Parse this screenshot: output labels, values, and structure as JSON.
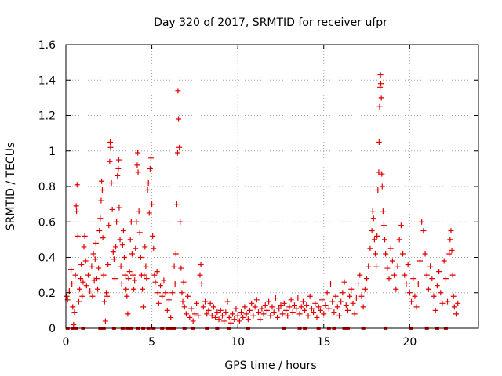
{
  "chart_data": {
    "type": "scatter",
    "title": "Day 320 of 2017, SRMTID for receiver ufpr",
    "xlabel": "GPS time / hours",
    "ylabel": "SRMTID / TECUs",
    "xlim": [
      0,
      24
    ],
    "ylim": [
      0,
      1.6
    ],
    "x_ticks": [
      0,
      5,
      10,
      15,
      20
    ],
    "x_tick_labels": [
      "0",
      "5",
      "10",
      "15",
      "20"
    ],
    "y_ticks": [
      0,
      0.2,
      0.4,
      0.6,
      0.8,
      1.0,
      1.2,
      1.4,
      1.6
    ],
    "y_tick_labels": [
      "0",
      "0.2",
      "0.4",
      "0.6",
      "0.8",
      "1",
      "1.2",
      "1.4",
      "1.6"
    ],
    "grid": true,
    "marker": "+",
    "color": "#e00000",
    "series": [
      {
        "name": "SRMTID",
        "points": [
          [
            0.05,
            0.18
          ],
          [
            0.1,
            0.16
          ],
          [
            0.2,
            0.21
          ],
          [
            0.3,
            0.33
          ],
          [
            0.35,
            0.25
          ],
          [
            0.4,
            0.12
          ],
          [
            0.45,
            0.02
          ],
          [
            0.5,
            0.09
          ],
          [
            0.55,
            0.3
          ],
          [
            0.6,
            0.69
          ],
          [
            0.62,
            0.66
          ],
          [
            0.65,
            0.81
          ],
          [
            0.7,
            0.52
          ],
          [
            0.75,
            0.15
          ],
          [
            0.8,
            0.22
          ],
          [
            0.85,
            0.28
          ],
          [
            0.9,
            0.36
          ],
          [
            0.95,
            0.18
          ],
          [
            1.0,
            0.26
          ],
          [
            1.05,
            0.46
          ],
          [
            1.1,
            0.52
          ],
          [
            1.15,
            0.38
          ],
          [
            1.2,
            0.24
          ],
          [
            1.3,
            0.3
          ],
          [
            1.4,
            0.21
          ],
          [
            1.5,
            0.35
          ],
          [
            1.55,
            0.18
          ],
          [
            1.6,
            0.42
          ],
          [
            1.65,
            0.27
          ],
          [
            1.7,
            0.39
          ],
          [
            1.75,
            0.48
          ],
          [
            1.8,
            0.28
          ],
          [
            1.85,
            0.22
          ],
          [
            1.9,
            0.34
          ],
          [
            1.95,
            0.55
          ],
          [
            2.0,
            0.62
          ],
          [
            2.05,
            0.72
          ],
          [
            2.08,
            0.83
          ],
          [
            2.12,
            0.78
          ],
          [
            2.15,
            0.51
          ],
          [
            2.2,
            0.3
          ],
          [
            2.25,
            0.15
          ],
          [
            2.3,
            0.04
          ],
          [
            2.35,
            0.2
          ],
          [
            2.4,
            0.18
          ],
          [
            2.45,
            0.36
          ],
          [
            2.5,
            0.58
          ],
          [
            2.55,
            0.94
          ],
          [
            2.58,
            1.05
          ],
          [
            2.6,
            1.02
          ],
          [
            2.65,
            0.82
          ],
          [
            2.7,
            0.67
          ],
          [
            2.75,
            0.43
          ],
          [
            2.8,
            0.39
          ],
          [
            2.85,
            0.28
          ],
          [
            2.9,
            0.46
          ],
          [
            2.95,
            0.6
          ],
          [
            3.0,
            0.86
          ],
          [
            3.05,
            0.9
          ],
          [
            3.08,
            0.95
          ],
          [
            3.1,
            0.68
          ],
          [
            3.15,
            0.5
          ],
          [
            3.2,
            0.35
          ],
          [
            3.25,
            0.25
          ],
          [
            3.3,
            0.47
          ],
          [
            3.35,
            0.55
          ],
          [
            3.4,
            0.4
          ],
          [
            3.45,
            0.3
          ],
          [
            3.5,
            0.22
          ],
          [
            3.55,
            0.18
          ],
          [
            3.6,
            0.08
          ],
          [
            3.65,
            0.28
          ],
          [
            3.7,
            0.32
          ],
          [
            3.75,
            0.5
          ],
          [
            3.8,
            0.6
          ],
          [
            3.85,
            0.42
          ],
          [
            3.9,
            0.3
          ],
          [
            3.95,
            0.22
          ],
          [
            4.0,
            0.27
          ],
          [
            4.05,
            0.45
          ],
          [
            4.1,
            0.6
          ],
          [
            4.15,
            0.92
          ],
          [
            4.18,
            0.99
          ],
          [
            4.2,
            0.88
          ],
          [
            4.25,
            0.66
          ],
          [
            4.3,
            0.54
          ],
          [
            4.35,
            0.4
          ],
          [
            4.4,
            0.3
          ],
          [
            4.45,
            0.22
          ],
          [
            4.5,
            0.12
          ],
          [
            4.55,
            0.3
          ],
          [
            4.6,
            0.46
          ],
          [
            4.65,
            0.35
          ],
          [
            4.7,
            0.28
          ],
          [
            4.75,
            0.78
          ],
          [
            4.8,
            0.82
          ],
          [
            4.85,
            0.65
          ],
          [
            4.9,
            0.9
          ],
          [
            4.95,
            0.96
          ],
          [
            5.0,
            0.7
          ],
          [
            5.05,
            0.52
          ],
          [
            5.1,
            0.45
          ],
          [
            5.15,
            0.3
          ],
          [
            5.2,
            0.26
          ],
          [
            5.3,
            0.32
          ],
          [
            5.35,
            0.2
          ],
          [
            5.4,
            0.14
          ],
          [
            5.5,
            0.24
          ],
          [
            5.6,
            0.18
          ],
          [
            5.7,
            0.27
          ],
          [
            5.8,
            0.2
          ],
          [
            5.9,
            0.1
          ],
          [
            6.0,
            0.16
          ],
          [
            6.1,
            0.06
          ],
          [
            6.2,
            0.2
          ],
          [
            6.3,
            0.35
          ],
          [
            6.35,
            0.25
          ],
          [
            6.4,
            0.42
          ],
          [
            6.45,
            0.7
          ],
          [
            6.5,
            0.99
          ],
          [
            6.52,
            1.34
          ],
          [
            6.55,
            1.18
          ],
          [
            6.6,
            1.02
          ],
          [
            6.65,
            0.6
          ],
          [
            6.7,
            0.34
          ],
          [
            6.75,
            0.2
          ],
          [
            6.8,
            0.15
          ],
          [
            6.85,
            0.26
          ],
          [
            6.9,
            0.12
          ],
          [
            7.0,
            0.08
          ],
          [
            7.1,
            0.18
          ],
          [
            7.2,
            0.06
          ],
          [
            7.3,
            0.11
          ],
          [
            7.4,
            0.04
          ],
          [
            7.5,
            0.08
          ],
          [
            7.6,
            0.14
          ],
          [
            7.7,
            0.07
          ],
          [
            7.8,
            0.3
          ],
          [
            7.85,
            0.36
          ],
          [
            7.9,
            0.25
          ],
          [
            8.0,
            0.12
          ],
          [
            8.1,
            0.15
          ],
          [
            8.2,
            0.08
          ],
          [
            8.3,
            0.1
          ],
          [
            8.4,
            0.14
          ],
          [
            8.5,
            0.07
          ],
          [
            8.6,
            0.12
          ],
          [
            8.7,
            0.06
          ],
          [
            8.8,
            0.09
          ],
          [
            8.9,
            0.05
          ],
          [
            9.0,
            0.1
          ],
          [
            9.1,
            0.07
          ],
          [
            9.2,
            0.04
          ],
          [
            9.3,
            0.09
          ],
          [
            9.4,
            0.15
          ],
          [
            9.5,
            0.06
          ],
          [
            9.6,
            0.03
          ],
          [
            9.7,
            0.08
          ],
          [
            9.8,
            0.05
          ],
          [
            9.9,
            0.11
          ],
          [
            10.0,
            0.07
          ],
          [
            10.1,
            0.04
          ],
          [
            10.2,
            0.09
          ],
          [
            10.3,
            0.06
          ],
          [
            10.4,
            0.12
          ],
          [
            10.5,
            0.08
          ],
          [
            10.6,
            0.05
          ],
          [
            10.7,
            0.1
          ],
          [
            10.8,
            0.14
          ],
          [
            10.9,
            0.07
          ],
          [
            11.0,
            0.12
          ],
          [
            11.1,
            0.16
          ],
          [
            11.2,
            0.09
          ],
          [
            11.3,
            0.05
          ],
          [
            11.4,
            0.11
          ],
          [
            11.5,
            0.08
          ],
          [
            11.6,
            0.13
          ],
          [
            11.7,
            0.1
          ],
          [
            11.8,
            0.15
          ],
          [
            11.9,
            0.07
          ],
          [
            12.0,
            0.12
          ],
          [
            12.1,
            0.09
          ],
          [
            12.2,
            0.17
          ],
          [
            12.3,
            0.06
          ],
          [
            12.4,
            0.11
          ],
          [
            12.5,
            0.13
          ],
          [
            12.6,
            0.08
          ],
          [
            12.7,
            0.14
          ],
          [
            12.8,
            0.1
          ],
          [
            12.9,
            0.07
          ],
          [
            13.0,
            0.12
          ],
          [
            13.1,
            0.16
          ],
          [
            13.2,
            0.09
          ],
          [
            13.3,
            0.13
          ],
          [
            13.4,
            0.11
          ],
          [
            13.5,
            0.17
          ],
          [
            13.6,
            0.08
          ],
          [
            13.7,
            0.12
          ],
          [
            13.8,
            0.15
          ],
          [
            13.9,
            0.1
          ],
          [
            14.0,
            0.13
          ],
          [
            14.1,
            0.07
          ],
          [
            14.2,
            0.18
          ],
          [
            14.3,
            0.11
          ],
          [
            14.4,
            0.09
          ],
          [
            14.5,
            0.14
          ],
          [
            14.6,
            0.06
          ],
          [
            14.7,
            0.12
          ],
          [
            14.8,
            0.1
          ],
          [
            14.9,
            0.16
          ],
          [
            15.0,
            0.08
          ],
          [
            15.1,
            0.13
          ],
          [
            15.2,
            0.2
          ],
          [
            15.3,
            0.11
          ],
          [
            15.4,
            0.25
          ],
          [
            15.5,
            0.15
          ],
          [
            15.6,
            0.09
          ],
          [
            15.7,
            0.18
          ],
          [
            15.8,
            0.12
          ],
          [
            15.9,
            0.07
          ],
          [
            16.0,
            0.15
          ],
          [
            16.1,
            0.2
          ],
          [
            16.2,
            0.26
          ],
          [
            16.3,
            0.13
          ],
          [
            16.4,
            0.1
          ],
          [
            16.5,
            0.18
          ],
          [
            16.6,
            0.22
          ],
          [
            16.7,
            0.14
          ],
          [
            16.8,
            0.08
          ],
          [
            16.9,
            0.17
          ],
          [
            17.0,
            0.25
          ],
          [
            17.1,
            0.3
          ],
          [
            17.2,
            0.18
          ],
          [
            17.3,
            0.12
          ],
          [
            17.4,
            0.22
          ],
          [
            17.5,
            0.28
          ],
          [
            17.6,
            0.35
          ],
          [
            17.7,
            0.45
          ],
          [
            17.8,
            0.55
          ],
          [
            17.85,
            0.66
          ],
          [
            17.9,
            0.62
          ],
          [
            17.95,
            0.5
          ],
          [
            18.0,
            0.42
          ],
          [
            18.05,
            0.35
          ],
          [
            18.1,
            0.52
          ],
          [
            18.15,
            0.78
          ],
          [
            18.2,
            0.88
          ],
          [
            18.22,
            1.05
          ],
          [
            18.25,
            1.25
          ],
          [
            18.28,
            1.36
          ],
          [
            18.3,
            1.43
          ],
          [
            18.32,
            1.38
          ],
          [
            18.35,
            1.3
          ],
          [
            18.38,
            0.87
          ],
          [
            18.4,
            0.8
          ],
          [
            18.45,
            0.66
          ],
          [
            18.5,
            0.58
          ],
          [
            18.55,
            0.5
          ],
          [
            18.6,
            0.42
          ],
          [
            18.7,
            0.34
          ],
          [
            18.8,
            0.28
          ],
          [
            18.9,
            0.45
          ],
          [
            19.0,
            0.38
          ],
          [
            19.1,
            0.3
          ],
          [
            19.2,
            0.22
          ],
          [
            19.3,
            0.35
          ],
          [
            19.4,
            0.5
          ],
          [
            19.5,
            0.58
          ],
          [
            19.6,
            0.42
          ],
          [
            19.7,
            0.3
          ],
          [
            19.8,
            0.25
          ],
          [
            19.9,
            0.36
          ],
          [
            20.0,
            0.2
          ],
          [
            20.1,
            0.15
          ],
          [
            20.2,
            0.28
          ],
          [
            20.3,
            0.18
          ],
          [
            20.4,
            0.12
          ],
          [
            20.5,
            0.25
          ],
          [
            20.6,
            0.38
          ],
          [
            20.7,
            0.6
          ],
          [
            20.8,
            0.55
          ],
          [
            20.9,
            0.42
          ],
          [
            21.0,
            0.3
          ],
          [
            21.1,
            0.22
          ],
          [
            21.2,
            0.35
          ],
          [
            21.3,
            0.28
          ],
          [
            21.4,
            0.18
          ],
          [
            21.5,
            0.1
          ],
          [
            21.6,
            0.24
          ],
          [
            21.7,
            0.32
          ],
          [
            21.8,
            0.2
          ],
          [
            21.9,
            0.14
          ],
          [
            22.0,
            0.38
          ],
          [
            22.1,
            0.28
          ],
          [
            22.2,
            0.15
          ],
          [
            22.3,
            0.42
          ],
          [
            22.35,
            0.5
          ],
          [
            22.4,
            0.55
          ],
          [
            22.45,
            0.44
          ],
          [
            22.5,
            0.3
          ],
          [
            22.55,
            0.18
          ],
          [
            22.6,
            0.12
          ],
          [
            22.7,
            0.08
          ],
          [
            22.8,
            0.14
          ]
        ]
      }
    ],
    "zero_markers_x": [
      0.1,
      0.4,
      0.6,
      1.0,
      2.0,
      2.2,
      2.8,
      3.3,
      3.6,
      3.8,
      4.2,
      4.5,
      4.8,
      5.1,
      5.6,
      5.9,
      6.1,
      6.3,
      6.9,
      7.4,
      8.2,
      8.8,
      9.5,
      10.6,
      12.7,
      13.6,
      13.9,
      14.7,
      15.3,
      15.6,
      16.2,
      16.4,
      17.3,
      18.6,
      20.1,
      21.0,
      21.6,
      22.1
    ]
  }
}
